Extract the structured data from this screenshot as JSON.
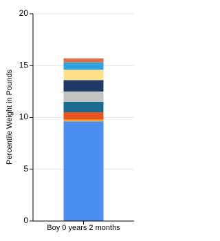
{
  "chart_data": {
    "type": "stacked-bar",
    "ylabel": "Percentile Weight in Pounds",
    "categories": [
      "Boy 0 years 2 months"
    ],
    "series": [
      {
        "color": "#4a8ff0",
        "values": [
          9.6
        ]
      },
      {
        "color": "#f5a43a",
        "values": [
          0.2
        ]
      },
      {
        "color": "#e8541e",
        "values": [
          0.7
        ]
      },
      {
        "color": "#1b6b8c",
        "values": [
          1.0
        ]
      },
      {
        "color": "#c3c3c3",
        "values": [
          1.0
        ]
      },
      {
        "color": "#1f3864",
        "values": [
          1.1
        ]
      },
      {
        "color": "#ffe08a",
        "values": [
          1.0
        ]
      },
      {
        "color": "#2ea3e3",
        "values": [
          0.7
        ]
      },
      {
        "color": "#d8714a",
        "values": [
          0.4
        ]
      }
    ],
    "ylim": [
      0,
      20
    ],
    "yticks": [
      0,
      5,
      10,
      15,
      20
    ],
    "grid": true
  }
}
